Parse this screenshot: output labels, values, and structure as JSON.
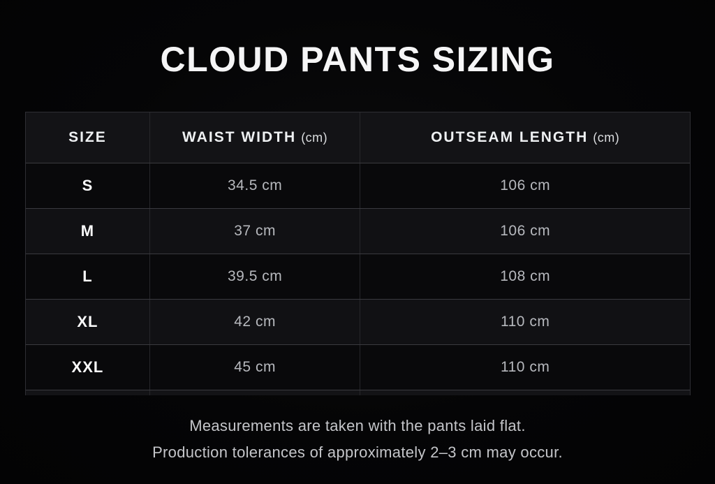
{
  "page": {
    "title": "CLOUD PANTS SIZING"
  },
  "table": {
    "columns": [
      {
        "label": "SIZE",
        "unit": ""
      },
      {
        "label": "WAIST WIDTH",
        "unit": "(cm)"
      },
      {
        "label": "OUTSEAM LENGTH",
        "unit": "(cm)"
      }
    ],
    "rows": [
      {
        "size": "S",
        "waist": "34.5 cm",
        "outseam": "106 cm"
      },
      {
        "size": "M",
        "waist": "37 cm",
        "outseam": "106 cm"
      },
      {
        "size": "L",
        "waist": "39.5 cm",
        "outseam": "108 cm"
      },
      {
        "size": "XL",
        "waist": "42 cm",
        "outseam": "110 cm"
      },
      {
        "size": "XXL",
        "waist": "45 cm",
        "outseam": "110 cm"
      }
    ]
  },
  "footer": {
    "line1": "Measurements are taken with the pants laid flat.",
    "line2": "Production tolerances of approximately 2–3 cm may occur."
  },
  "colors": {
    "background": "#050506",
    "header_row_bg": "#131316",
    "row_dark_bg": "#09090b",
    "row_light_bg": "#111114",
    "border_horizontal": "#3a3a3f",
    "border_vertical": "#27272b",
    "title_text": "#f5f5f6",
    "value_text": "#b6b8bd",
    "footer_text": "#c4c5c9"
  },
  "chart_data": {
    "type": "table",
    "title": "CLOUD PANTS SIZING",
    "columns": [
      "SIZE",
      "WAIST WIDTH (cm)",
      "OUTSEAM LENGTH (cm)"
    ],
    "rows": [
      [
        "S",
        "34.5 cm",
        "106 cm"
      ],
      [
        "M",
        "37 cm",
        "106 cm"
      ],
      [
        "L",
        "39.5 cm",
        "108 cm"
      ],
      [
        "XL",
        "42 cm",
        "110 cm"
      ],
      [
        "XXL",
        "45 cm",
        "110 cm"
      ]
    ],
    "waist_width_cm": [
      34.5,
      37,
      39.5,
      42,
      45
    ],
    "outseam_length_cm": [
      106,
      106,
      108,
      110,
      110
    ],
    "notes": [
      "Measurements are taken with the pants laid flat.",
      "Production tolerances of approximately 2–3 cm may occur."
    ]
  }
}
